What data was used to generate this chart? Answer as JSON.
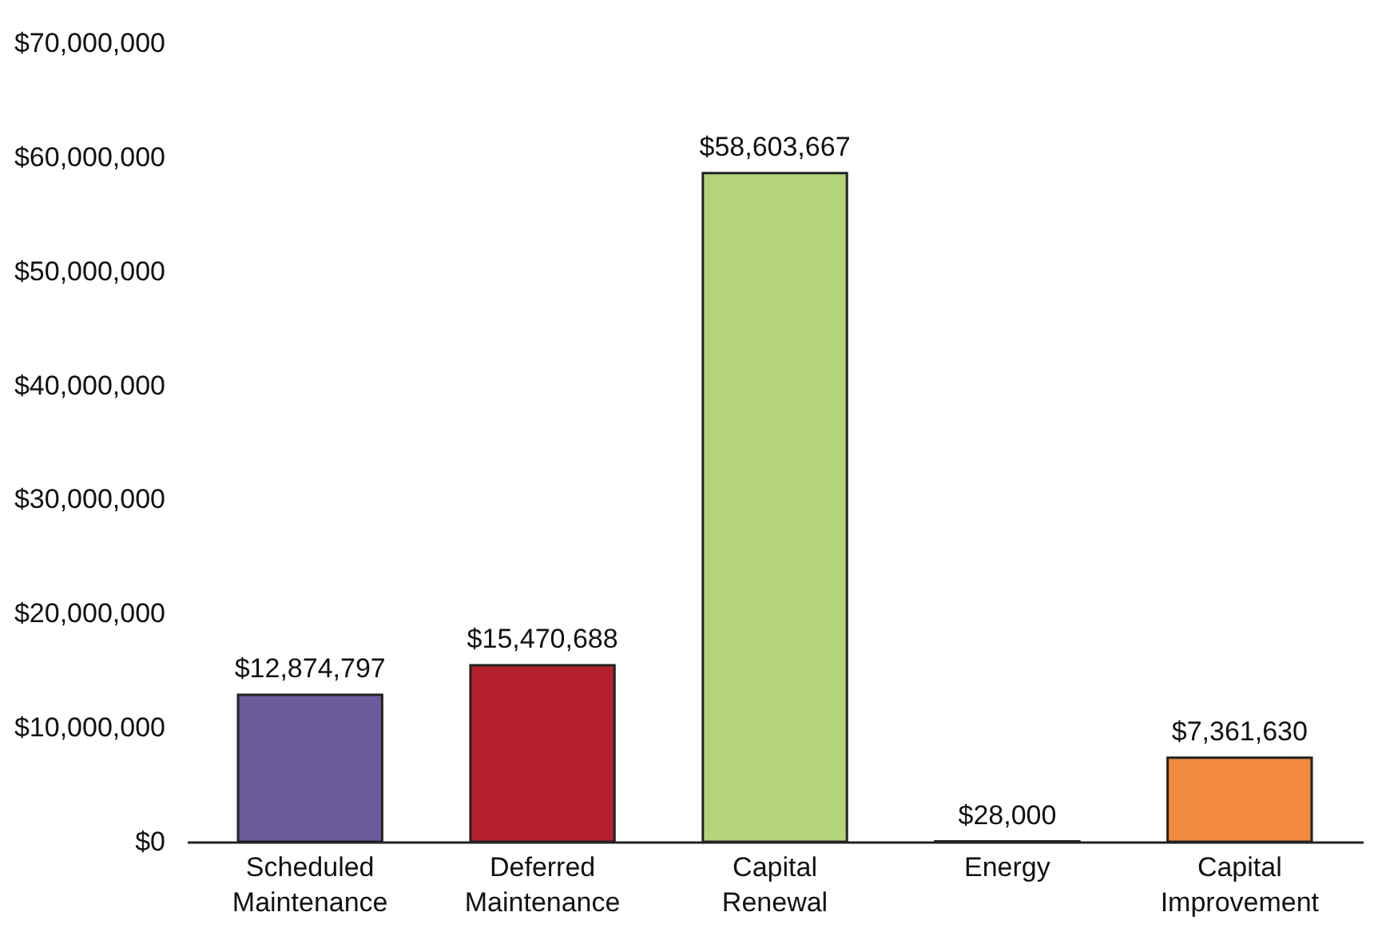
{
  "chart_data": {
    "type": "bar",
    "categories": [
      "Scheduled Maintenance",
      "Deferred Maintenance",
      "Capital Renewal",
      "Energy",
      "Capital Improvement"
    ],
    "values": [
      12874797,
      15470688,
      58603667,
      28000,
      7361630
    ],
    "value_labels": [
      "$12,874,797",
      "$15,470,688",
      "$58,603,667",
      "$28,000",
      "$7,361,630"
    ],
    "colors": [
      "#6a5c9b",
      "#b31f2c",
      "#b4d47c",
      "#8bbfe0",
      "#ef8a3e"
    ],
    "ylim": [
      0,
      70000000
    ],
    "yticks": [
      {
        "value": 0,
        "label": "$0"
      },
      {
        "value": 10000000,
        "label": "$10,000,000"
      },
      {
        "value": 20000000,
        "label": "$20,000,000"
      },
      {
        "value": 30000000,
        "label": "$30,000,000"
      },
      {
        "value": 40000000,
        "label": "$40,000,000"
      },
      {
        "value": 50000000,
        "label": "$50,000,000"
      },
      {
        "value": 60000000,
        "label": "$60,000,000"
      },
      {
        "value": 70000000,
        "label": "$70,000,000"
      }
    ],
    "grid": false,
    "legend": false
  }
}
